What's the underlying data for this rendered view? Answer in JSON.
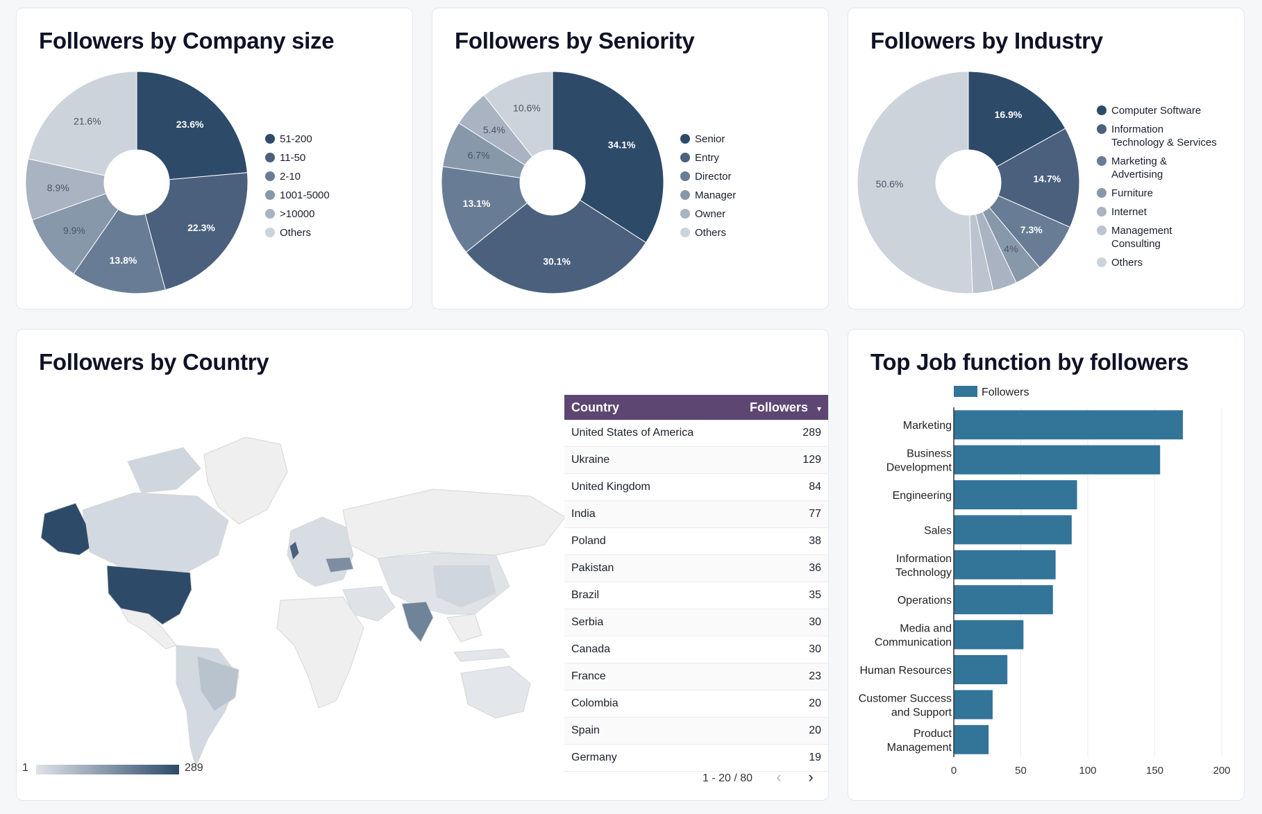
{
  "company_size": {
    "title": "Followers by Company size",
    "chart_data": {
      "type": "pie",
      "title": "Followers by Company size",
      "labels": [
        "51-200",
        "11-50",
        "2-10",
        "1001-5000",
        ">10000",
        "Others"
      ],
      "values": [
        23.6,
        22.3,
        13.8,
        9.9,
        8.9,
        21.6
      ],
      "display": [
        "23.6%",
        "22.3%",
        "13.8%",
        "9.9%",
        "8.9%",
        "21.6%"
      ],
      "colors": [
        "#2d4a69",
        "#4a607d",
        "#687d95",
        "#8898ab",
        "#a9b3c1",
        "#cdd3da"
      ],
      "donut": true,
      "legend": "right"
    }
  },
  "seniority": {
    "title": "Followers by Seniority",
    "chart_data": {
      "type": "pie",
      "title": "Followers by Seniority",
      "labels": [
        "Senior",
        "Entry",
        "Director",
        "Manager",
        "Owner",
        "Others"
      ],
      "values": [
        34.1,
        30.1,
        13.1,
        6.7,
        5.4,
        10.6
      ],
      "display": [
        "34.1%",
        "30.1%",
        "13.1%",
        "6.7%",
        "5.4%",
        "10.6%"
      ],
      "colors": [
        "#2d4a69",
        "#4a607d",
        "#687d95",
        "#8898ab",
        "#a9b3c1",
        "#cdd3da"
      ],
      "donut": true,
      "legend": "right"
    }
  },
  "industry": {
    "title": "Followers by Industry",
    "chart_data": {
      "type": "pie",
      "title": "Followers by Industry",
      "labels": [
        "Computer Software",
        "Information Technology & Services",
        "Marketing & Advertising",
        "Furniture",
        "Internet",
        "Management Consulting",
        "Others"
      ],
      "legend_lines": [
        [
          "Computer Software"
        ],
        [
          "Information",
          "Technology & Services"
        ],
        [
          "Marketing &",
          "Advertising"
        ],
        [
          "Furniture"
        ],
        [
          "Internet"
        ],
        [
          "Management",
          "Consulting"
        ],
        [
          "Others"
        ]
      ],
      "values": [
        16.9,
        14.7,
        7.3,
        4,
        3.5,
        3,
        50.6
      ],
      "display": [
        "16.9%",
        "14.7%",
        "7.3%",
        "4%",
        "",
        "",
        "50.6%"
      ],
      "colors": [
        "#2d4a69",
        "#4a607d",
        "#687d95",
        "#8898ab",
        "#a9b3c1",
        "#bcc4cf",
        "#cdd3da"
      ],
      "donut": true,
      "legend": "right"
    }
  },
  "country": {
    "title": "Followers by Country",
    "map_scale": {
      "min": "1",
      "max": "289",
      "color_low": "#dfe3e8",
      "color_high": "#2d4a69"
    },
    "table": {
      "headers": [
        "Country",
        "Followers"
      ],
      "sort_indicator": "▾",
      "rows": [
        [
          "United States of America",
          "289"
        ],
        [
          "Ukraine",
          "129"
        ],
        [
          "United Kingdom",
          "84"
        ],
        [
          "India",
          "77"
        ],
        [
          "Poland",
          "38"
        ],
        [
          "Pakistan",
          "36"
        ],
        [
          "Brazil",
          "35"
        ],
        [
          "Serbia",
          "30"
        ],
        [
          "Canada",
          "30"
        ],
        [
          "France",
          "23"
        ],
        [
          "Colombia",
          "20"
        ],
        [
          "Spain",
          "20"
        ],
        [
          "Germany",
          "19"
        ]
      ],
      "pagination": "1 - 20 / 80",
      "prev_icon": "‹",
      "next_icon": "›"
    }
  },
  "job_function": {
    "title": "Top Job function by followers",
    "chart_data": {
      "type": "bar",
      "orientation": "horizontal",
      "title": "Top Job function by followers",
      "categories": [
        [
          "Marketing"
        ],
        [
          "Business",
          "Development"
        ],
        [
          "Engineering"
        ],
        [
          "Sales"
        ],
        [
          "Information",
          "Technology"
        ],
        [
          "Operations"
        ],
        [
          "Media and",
          "Communication"
        ],
        [
          "Human Resources"
        ],
        [
          "Customer Success",
          "and Support"
        ],
        [
          "Product",
          "Management"
        ]
      ],
      "series": [
        {
          "name": "Followers",
          "values": [
            171,
            154,
            92,
            88,
            76,
            74,
            52,
            40,
            29,
            26
          ]
        }
      ],
      "xlim": [
        0,
        200
      ],
      "xticks": [
        "0",
        "50",
        "100",
        "150",
        "200"
      ],
      "grid": true,
      "legend": "top",
      "bar_color": "#337499"
    }
  }
}
